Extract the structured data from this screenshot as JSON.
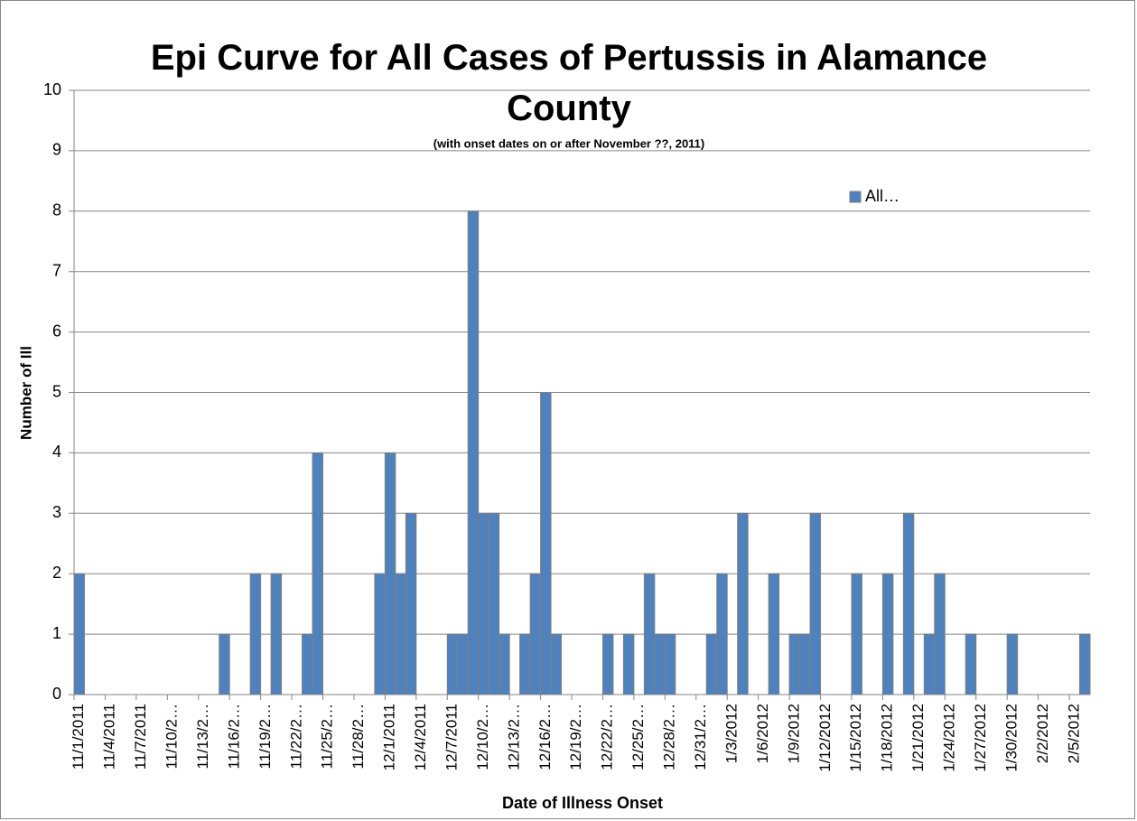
{
  "chart_data": {
    "type": "bar",
    "title": "Epi Curve for All Cases of Pertussis in Alamance County",
    "subtitle": "(with onset dates on or after November ??, 2011)",
    "x_label": "Date of Illness Onset",
    "y_label": "Number of Ill",
    "categories": [
      "11/1/2011",
      null,
      null,
      "11/4/2011",
      null,
      null,
      "11/7/2011",
      null,
      null,
      "11/10/2…",
      null,
      null,
      "11/13/2…",
      null,
      null,
      "11/16/2…",
      null,
      null,
      "11/19/2…",
      null,
      null,
      "11/22/2…",
      null,
      null,
      "11/25/2…",
      null,
      null,
      "11/28/2…",
      null,
      null,
      "12/1/2011",
      null,
      null,
      "12/4/2011",
      null,
      null,
      "12/7/2011",
      null,
      null,
      "12/10/2…",
      null,
      null,
      "12/13/2…",
      null,
      null,
      "12/16/2…",
      null,
      null,
      "12/19/2…",
      null,
      null,
      "12/22/2…",
      null,
      null,
      "12/25/2…",
      null,
      null,
      "12/28/2…",
      null,
      null,
      "12/31/2…",
      null,
      null,
      "1/3/2012",
      null,
      null,
      "1/6/2012",
      null,
      null,
      "1/9/2012",
      null,
      null,
      "1/12/2012",
      null,
      null,
      "1/15/2012",
      null,
      null,
      "1/18/2012",
      null,
      null,
      "1/21/2012",
      null,
      null,
      "1/24/2012",
      null,
      null,
      "1/27/2012",
      null,
      null,
      "1/30/2012",
      null,
      null,
      "2/2/2012",
      null,
      null,
      "2/5/2012",
      null
    ],
    "series": [
      {
        "name": "All…",
        "color": "#4f81bd",
        "values": [
          2,
          0,
          0,
          0,
          0,
          0,
          0,
          0,
          0,
          0,
          0,
          0,
          0,
          0,
          1,
          0,
          0,
          2,
          0,
          2,
          0,
          0,
          1,
          4,
          0,
          0,
          0,
          0,
          0,
          2,
          4,
          2,
          3,
          0,
          0,
          0,
          1,
          1,
          8,
          3,
          3,
          1,
          0,
          1,
          2,
          5,
          1,
          0,
          0,
          0,
          0,
          1,
          0,
          1,
          0,
          2,
          1,
          1,
          0,
          0,
          0,
          1,
          2,
          0,
          3,
          0,
          0,
          2,
          0,
          1,
          1,
          3,
          0,
          0,
          0,
          2,
          0,
          0,
          2,
          0,
          3,
          0,
          1,
          2,
          0,
          0,
          1,
          0,
          0,
          0,
          1,
          0,
          0,
          0,
          0,
          0,
          0,
          1
        ]
      }
    ],
    "ylim": [
      0,
      10
    ],
    "yticks": [
      0,
      1,
      2,
      3,
      4,
      5,
      6,
      7,
      8,
      9,
      10
    ],
    "grid": true,
    "legend": "upper right"
  }
}
